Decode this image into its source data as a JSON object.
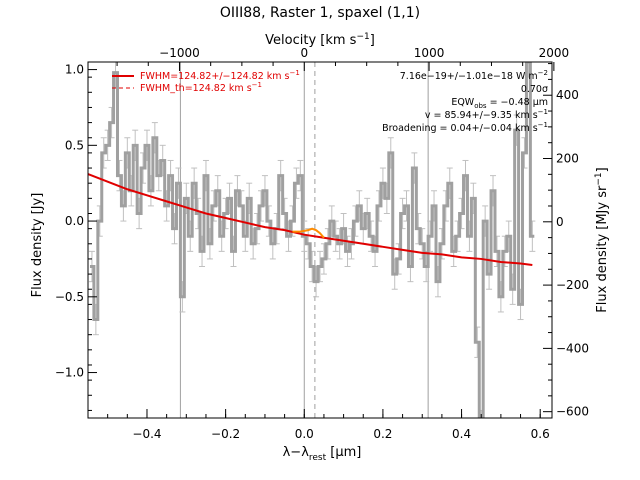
{
  "chart_data": {
    "type": "line",
    "title": "OIII88, Raster 1, spaxel (1,1)",
    "xlabel_main": "λ−λ",
    "xlabel_sub": "rest",
    "xlabel_unit": " [μm]",
    "ylabel": "Flux density [Jy]",
    "x2label_main": "Velocity [km s",
    "x2label_sup": "−1",
    "x2label_end": "]",
    "y2label_main": "Flux density [MJy sr",
    "y2label_sup": "−1",
    "y2label_end": "]",
    "xlim": [
      -0.55,
      0.63
    ],
    "ylim": [
      -1.3,
      1.05
    ],
    "y2lim": [
      -620,
      505
    ],
    "x2lim": [
      -1733,
      1985
    ],
    "x_ticks": [
      -0.4,
      -0.2,
      0.0,
      0.2,
      0.4,
      0.6
    ],
    "x_tick_labels": [
      "−0.4",
      "−0.2",
      "0.0",
      "0.2",
      "0.4",
      "0.6"
    ],
    "y_ticks": [
      -1.0,
      -0.5,
      0.0,
      0.5,
      1.0
    ],
    "y_tick_labels": [
      "−1.0",
      "−0.5",
      "0.0",
      "0.5",
      "1.0"
    ],
    "x2_ticks": [
      -1000,
      0,
      1000,
      2000
    ],
    "x2_tick_labels": [
      "−1000",
      "0",
      "1000",
      "2000"
    ],
    "y2_ticks": [
      -600,
      -400,
      -200,
      0,
      200,
      400
    ],
    "y2_tick_labels": [
      "−600",
      "−400",
      "−200",
      "0",
      "200",
      "400"
    ],
    "vertical_lines_solid": [
      -0.315,
      0.0,
      0.315
    ],
    "vertical_line_dashed": 0.027,
    "legend": [
      {
        "label": "FWHM=124.82+/−124.82 km s",
        "sup": "−1",
        "style": "solid",
        "color": "#e00000"
      },
      {
        "label": "FWHM_th=124.82 km s",
        "sup": "−1",
        "style": "dashed",
        "color": "#e00000"
      }
    ],
    "annotations": [
      "7.16e−19+/−1.01e−18 W m",
      "0.70σ",
      "EQW",
      "v = 85.94+/−9.35 km s",
      "Broadening = 0.04+/−0.04 km s"
    ],
    "annotation_sups": [
      "−2",
      "",
      "",
      "−1",
      "−1"
    ],
    "eqw_sub": "obs",
    "eqw_value": " = −0.48 μm",
    "colors": {
      "data": "#a0a0a0",
      "errorbar": "#c0c0c0",
      "fit": "#e00000",
      "line": "#ff8c00",
      "vline": "#a0a0a0"
    },
    "series": [
      {
        "x": [
          -0.54,
          -0.53,
          -0.52,
          -0.51,
          -0.5,
          -0.49,
          -0.48,
          -0.47,
          -0.46,
          -0.45,
          -0.44,
          -0.43,
          -0.42,
          -0.41,
          -0.4,
          -0.39,
          -0.38,
          -0.37,
          -0.36,
          -0.35,
          -0.34,
          -0.33,
          -0.32,
          -0.31,
          -0.3,
          -0.29,
          -0.28,
          -0.27,
          -0.26,
          -0.25,
          -0.24,
          -0.23,
          -0.22,
          -0.21,
          -0.2,
          -0.19,
          -0.18,
          -0.17,
          -0.16,
          -0.15,
          -0.14,
          -0.13,
          -0.12,
          -0.11,
          -0.1,
          -0.09,
          -0.08,
          -0.07,
          -0.06,
          -0.05,
          -0.04,
          -0.03,
          -0.02,
          -0.01,
          0.0,
          0.01,
          0.02,
          0.03,
          0.04,
          0.05,
          0.06,
          0.07,
          0.08,
          0.09,
          0.1,
          0.11,
          0.12,
          0.13,
          0.14,
          0.15,
          0.16,
          0.17,
          0.18,
          0.19,
          0.2,
          0.21,
          0.22,
          0.23,
          0.24,
          0.25,
          0.26,
          0.27,
          0.28,
          0.29,
          0.3,
          0.31,
          0.32,
          0.33,
          0.34,
          0.35,
          0.36,
          0.37,
          0.38,
          0.39,
          0.4,
          0.41,
          0.42,
          0.43,
          0.44,
          0.45,
          0.46,
          0.47,
          0.48,
          0.49,
          0.5,
          0.51,
          0.52,
          0.53,
          0.54,
          0.55,
          0.56,
          0.57,
          0.58
        ],
        "y": [
          -0.3,
          -0.65,
          0.0,
          0.45,
          0.5,
          0.65,
          0.98,
          0.3,
          0.1,
          0.45,
          0.2,
          0.5,
          0.05,
          0.35,
          0.5,
          0.2,
          0.55,
          0.3,
          0.4,
          0.1,
          0.3,
          -0.05,
          0.25,
          -0.5,
          0.15,
          -0.1,
          0.25,
          0.05,
          -0.2,
          0.3,
          -0.15,
          0.1,
          0.2,
          -0.1,
          0.05,
          0.15,
          -0.2,
          0.2,
          0.1,
          -0.1,
          0.15,
          -0.15,
          -0.05,
          0.1,
          0.2,
          0.0,
          -0.15,
          -0.05,
          0.3,
          0.05,
          -0.1,
          0.0,
          0.25,
          0.3,
          -0.1,
          -0.15,
          -0.3,
          -0.4,
          -0.3,
          -0.25,
          -0.15,
          0.0,
          -0.1,
          -0.15,
          -0.05,
          -0.2,
          -0.15,
          0.0,
          0.1,
          -0.05,
          0.05,
          -0.1,
          -0.2,
          0.1,
          0.25,
          0.15,
          0.45,
          -0.35,
          -0.25,
          0.05,
          0.1,
          -0.3,
          0.35,
          -0.05,
          -0.15,
          -0.3,
          -0.1,
          0.1,
          -0.4,
          -0.15,
          0.1,
          0.25,
          -0.2,
          -0.1,
          0.05,
          0.3,
          -0.1,
          0.15,
          -0.8,
          -1.35,
          0.0,
          -0.35,
          0.2,
          -0.2,
          -0.5,
          -0.2,
          -0.1,
          -0.45,
          0.6,
          -0.55,
          0.45,
          1.05,
          -0.1
        ],
        "err": [
          0.1,
          0.1,
          0.1,
          0.1,
          0.1,
          0.1,
          0.1,
          0.1,
          0.1,
          0.1,
          0.1,
          0.1,
          0.1,
          0.1,
          0.1,
          0.1,
          0.1,
          0.1,
          0.1,
          0.1,
          0.1,
          0.1,
          0.1,
          0.1,
          0.1,
          0.1,
          0.1,
          0.1,
          0.1,
          0.1,
          0.1,
          0.1,
          0.1,
          0.1,
          0.1,
          0.1,
          0.1,
          0.1,
          0.1,
          0.1,
          0.1,
          0.1,
          0.1,
          0.1,
          0.1,
          0.1,
          0.1,
          0.1,
          0.1,
          0.1,
          0.1,
          0.1,
          0.1,
          0.1,
          0.1,
          0.1,
          0.1,
          0.1,
          0.1,
          0.1,
          0.1,
          0.1,
          0.1,
          0.1,
          0.1,
          0.1,
          0.1,
          0.1,
          0.1,
          0.1,
          0.1,
          0.1,
          0.1,
          0.1,
          0.1,
          0.1,
          0.1,
          0.1,
          0.1,
          0.1,
          0.1,
          0.1,
          0.1,
          0.1,
          0.1,
          0.1,
          0.1,
          0.1,
          0.1,
          0.1,
          0.1,
          0.1,
          0.1,
          0.1,
          0.1,
          0.1,
          0.1,
          0.1,
          0.1,
          0.1,
          0.1,
          0.1,
          0.1,
          0.1,
          0.1,
          0.1,
          0.1,
          0.1,
          0.1,
          0.1,
          0.1,
          0.1,
          0.1
        ]
      }
    ],
    "fit_curve": {
      "x": [
        -0.55,
        -0.5,
        -0.45,
        -0.4,
        -0.35,
        -0.3,
        -0.25,
        -0.2,
        -0.15,
        -0.1,
        -0.05,
        0.0,
        0.05,
        0.1,
        0.15,
        0.2,
        0.25,
        0.3,
        0.35,
        0.4,
        0.45,
        0.5,
        0.55,
        0.58
      ],
      "y": [
        0.31,
        0.26,
        0.21,
        0.17,
        0.13,
        0.09,
        0.05,
        0.02,
        -0.01,
        -0.04,
        -0.06,
        -0.09,
        -0.11,
        -0.13,
        -0.15,
        -0.17,
        -0.19,
        -0.21,
        -0.22,
        -0.24,
        -0.25,
        -0.27,
        -0.28,
        -0.29
      ]
    },
    "line_component": {
      "x": [
        -0.03,
        -0.01,
        0.01,
        0.02,
        0.03,
        0.04,
        0.05
      ],
      "y": [
        -0.07,
        -0.07,
        -0.06,
        -0.05,
        -0.06,
        -0.08,
        -0.11
      ]
    }
  }
}
